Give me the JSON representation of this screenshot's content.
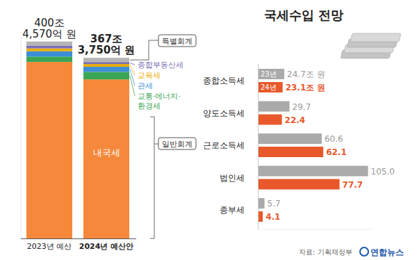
{
  "chart_data": [
    {
      "type": "bar",
      "stacked": true,
      "categories": [
        "2023년 예산",
        "2024년 예산안"
      ],
      "series": [
        {
          "name": "내국세",
          "color": "#f5883a",
          "values": [
            358.9,
            323.5
          ]
        },
        {
          "name": "교통·에너지·환경세",
          "color": "#3aa655",
          "values": [
            11.1,
            15.3
          ]
        },
        {
          "name": "관세",
          "color": "#3c8fd6",
          "values": [
            10.7,
            10.3
          ]
        },
        {
          "name": "교육세",
          "color": "#e8ac00",
          "values": [
            5.9,
            5.6
          ]
        },
        {
          "name": "종합부동산세",
          "color": "#7a6fb5",
          "values": [
            5.7,
            4.1
          ]
        },
        {
          "name": "특별회계",
          "color": "#b5b5b5",
          "values": [
            8.157,
            8.575
          ]
        }
      ],
      "total_labels": [
        [
          "400조",
          "4,570억 원"
        ],
        [
          "367조",
          "3,750억 원"
        ]
      ],
      "annotations": [
        "일반회계"
      ],
      "ylim": [
        0,
        410
      ],
      "tick_labels": "x"
    },
    {
      "type": "bar",
      "orientation": "horizontal",
      "title": "국세수입 전망",
      "categories": [
        "종합소득세",
        "양도소득세",
        "근로소득세",
        "법인세",
        "종부세"
      ],
      "series": [
        {
          "name": "23년",
          "color": "#aaaaaa",
          "values": [
            24.7,
            29.7,
            60.6,
            105.0,
            5.7
          ],
          "value_labels": [
            "24.7조 원",
            "29.7",
            "60.6",
            "105.0",
            "5.7"
          ]
        },
        {
          "name": "24년",
          "color": "#e8582a",
          "values": [
            23.1,
            22.4,
            62.1,
            77.7,
            4.1
          ],
          "value_labels": [
            "23.1조 원",
            "22.4",
            "62.1",
            "77.7",
            "4.1"
          ]
        }
      ],
      "xlim": [
        0,
        110
      ],
      "data_labels": true,
      "tick_labels": "y",
      "source": "자료: 기획재정부",
      "credit": "연합뉴스"
    }
  ]
}
